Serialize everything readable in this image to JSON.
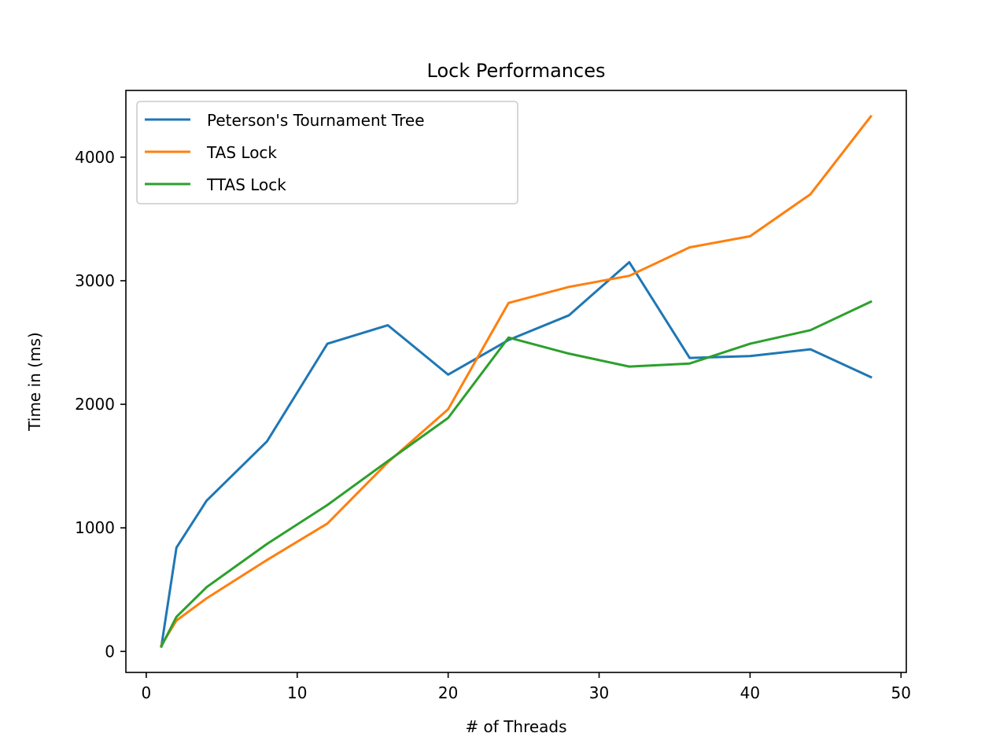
{
  "chart_data": {
    "type": "line",
    "title": "Lock Performances",
    "xlabel": "# of Threads",
    "ylabel": "Time in (ms)",
    "xlim": [
      -1.35,
      50.35
    ],
    "ylim": [
      -170,
      4540
    ],
    "xticks": [
      0,
      10,
      20,
      30,
      40,
      50
    ],
    "yticks": [
      0,
      1000,
      2000,
      3000,
      4000
    ],
    "xtick_labels": [
      "0",
      "10",
      "20",
      "30",
      "40",
      "50"
    ],
    "ytick_labels": [
      "0",
      "1000",
      "2000",
      "3000",
      "4000"
    ],
    "grid": false,
    "legend_position": "top-left",
    "x": [
      1,
      2,
      4,
      8,
      12,
      16,
      20,
      24,
      28,
      32,
      36,
      40,
      44,
      48
    ],
    "series": [
      {
        "name": "Peterson's Tournament Tree",
        "color": "#1f77b4",
        "values": [
          40,
          840,
          1220,
          1700,
          2490,
          2640,
          2240,
          2520,
          2720,
          3150,
          2375,
          2390,
          2445,
          2220
        ]
      },
      {
        "name": "TAS Lock",
        "color": "#ff7f0e",
        "values": [
          50,
          250,
          430,
          740,
          1035,
          1530,
          1960,
          2820,
          2950,
          3040,
          3270,
          3360,
          3700,
          4330
        ]
      },
      {
        "name": "TTAS Lock",
        "color": "#2ca02c",
        "values": [
          40,
          280,
          520,
          870,
          1185,
          1540,
          1890,
          2540,
          2410,
          2305,
          2330,
          2490,
          2600,
          2830
        ]
      }
    ]
  }
}
